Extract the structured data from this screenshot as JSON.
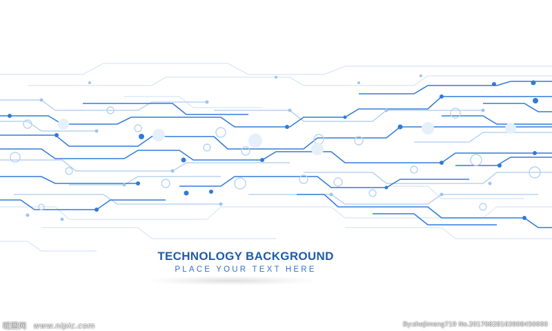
{
  "headline": {
    "title": "TECHNOLOGY BACKGROUND",
    "subtitle": "PLACE YOUR TEXT HERE"
  },
  "watermark": {
    "left_brand": "昵图网",
    "left_site": "www.nipic.com",
    "right_credit": "By:shejimeng719 No.20170828163908450000"
  },
  "colors": {
    "trace": "#2f7ad8",
    "trace_light": "#9cc4ee",
    "trace_faint": "#dbe8f6",
    "title": "#1f5aa8"
  }
}
